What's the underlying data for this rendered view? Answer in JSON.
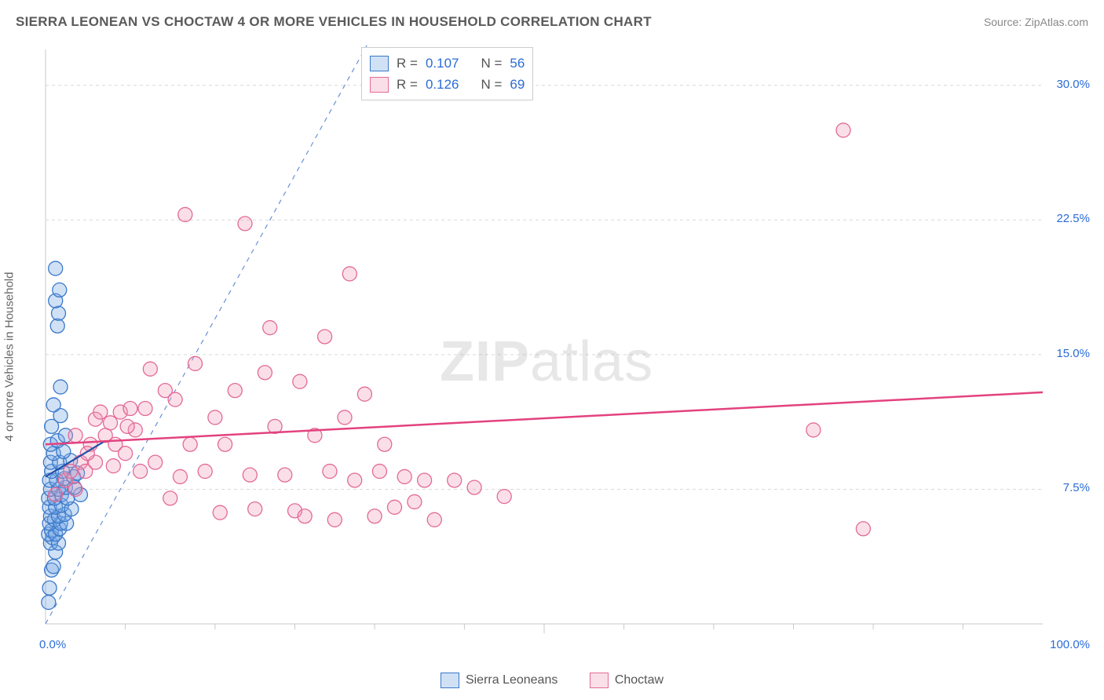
{
  "title": "SIERRA LEONEAN VS CHOCTAW 4 OR MORE VEHICLES IN HOUSEHOLD CORRELATION CHART",
  "source_label": "Source: ",
  "source_name": "ZipAtlas.com",
  "y_axis_label": "4 or more Vehicles in Household",
  "watermark_a": "ZIP",
  "watermark_b": "atlas",
  "chart": {
    "type": "scatter",
    "xlim": [
      0,
      100
    ],
    "ylim": [
      0,
      32
    ],
    "x_tick_labels": {
      "min": "0.0%",
      "max": "100.0%"
    },
    "y_ticks": [
      7.5,
      15.0,
      22.5,
      30.0
    ],
    "y_tick_labels": [
      "7.5%",
      "15.0%",
      "22.5%",
      "30.0%"
    ],
    "x_minor_ticks": [
      8,
      17,
      25,
      33,
      42,
      50,
      58,
      67,
      75,
      83,
      92
    ],
    "grid_color": "#d9d9d9",
    "background_color": "#ffffff",
    "axis_color": "#c8c8c8",
    "tick_label_color": "#2b6cd6",
    "diagonal": {
      "color": "#6a91d8",
      "dash": "6,6",
      "width": 1.2
    },
    "series": [
      {
        "name": "Sierra Leoneans",
        "marker_fill": "rgba(120,170,230,0.35)",
        "marker_stroke": "#3a78c9",
        "trend_color": "#1f4fa8",
        "trend_width": 2.2,
        "marker_r": 9,
        "R": "0.107",
        "N": "56",
        "trend": {
          "x1": 0,
          "y1": 8.2,
          "x2": 6,
          "y2": 10.2
        },
        "points": [
          [
            0.3,
            1.2
          ],
          [
            0.4,
            2.0
          ],
          [
            0.6,
            3.0
          ],
          [
            0.8,
            3.2
          ],
          [
            1.0,
            4.0
          ],
          [
            0.5,
            4.5
          ],
          [
            0.7,
            4.8
          ],
          [
            1.3,
            4.5
          ],
          [
            0.3,
            5.0
          ],
          [
            0.6,
            5.2
          ],
          [
            1.0,
            5.0
          ],
          [
            1.4,
            5.3
          ],
          [
            0.4,
            5.6
          ],
          [
            0.9,
            5.8
          ],
          [
            1.5,
            5.6
          ],
          [
            2.1,
            5.6
          ],
          [
            0.5,
            6.0
          ],
          [
            1.3,
            6.0
          ],
          [
            1.9,
            6.1
          ],
          [
            0.4,
            6.5
          ],
          [
            1.0,
            6.5
          ],
          [
            1.6,
            6.6
          ],
          [
            2.6,
            6.4
          ],
          [
            0.3,
            7.0
          ],
          [
            0.9,
            7.0
          ],
          [
            1.6,
            7.2
          ],
          [
            2.2,
            7.0
          ],
          [
            3.5,
            7.2
          ],
          [
            0.5,
            7.5
          ],
          [
            1.3,
            7.5
          ],
          [
            2.0,
            7.6
          ],
          [
            2.9,
            7.6
          ],
          [
            0.4,
            8.0
          ],
          [
            1.1,
            8.0
          ],
          [
            1.9,
            8.1
          ],
          [
            2.8,
            8.2
          ],
          [
            0.6,
            8.5
          ],
          [
            1.7,
            8.5
          ],
          [
            3.2,
            8.4
          ],
          [
            0.5,
            9.0
          ],
          [
            1.4,
            9.0
          ],
          [
            2.5,
            9.1
          ],
          [
            0.8,
            9.5
          ],
          [
            1.8,
            9.6
          ],
          [
            0.5,
            10.0
          ],
          [
            1.2,
            10.2
          ],
          [
            2.0,
            10.5
          ],
          [
            0.6,
            11.0
          ],
          [
            1.5,
            11.6
          ],
          [
            0.8,
            12.2
          ],
          [
            1.5,
            13.2
          ],
          [
            1.2,
            16.6
          ],
          [
            1.3,
            17.3
          ],
          [
            1.0,
            18.0
          ],
          [
            1.4,
            18.6
          ],
          [
            1.0,
            19.8
          ]
        ]
      },
      {
        "name": "Choctaw",
        "marker_fill": "rgba(242,150,180,0.30)",
        "marker_stroke": "#e36a98",
        "trend_color": "#e3427f",
        "trend_width": 2.5,
        "marker_r": 9,
        "R": "0.126",
        "N": "69",
        "trend": {
          "x1": 0,
          "y1": 10.0,
          "x2": 100,
          "y2": 12.9
        },
        "points": [
          [
            1.0,
            7.2
          ],
          [
            2.0,
            8.0
          ],
          [
            2.5,
            8.5
          ],
          [
            3.0,
            7.5
          ],
          [
            3.5,
            9.0
          ],
          [
            4.0,
            8.5
          ],
          [
            4.5,
            10.0
          ],
          [
            5.0,
            9.0
          ],
          [
            5.0,
            11.4
          ],
          [
            5.5,
            11.8
          ],
          [
            6.0,
            10.5
          ],
          [
            6.5,
            11.2
          ],
          [
            7.0,
            10.0
          ],
          [
            7.5,
            11.8
          ],
          [
            8.0,
            9.5
          ],
          [
            8.5,
            12.0
          ],
          [
            9.0,
            10.8
          ],
          [
            9.5,
            8.5
          ],
          [
            10.0,
            12.0
          ],
          [
            10.5,
            14.2
          ],
          [
            11.0,
            9.0
          ],
          [
            12.0,
            13.0
          ],
          [
            12.5,
            7.0
          ],
          [
            13.0,
            12.5
          ],
          [
            13.5,
            8.2
          ],
          [
            14.0,
            22.8
          ],
          [
            14.5,
            10.0
          ],
          [
            15.0,
            14.5
          ],
          [
            16.0,
            8.5
          ],
          [
            17.0,
            11.5
          ],
          [
            17.5,
            6.2
          ],
          [
            18.0,
            10.0
          ],
          [
            19.0,
            13.0
          ],
          [
            20.0,
            22.3
          ],
          [
            20.5,
            8.3
          ],
          [
            21.0,
            6.4
          ],
          [
            22.0,
            14.0
          ],
          [
            22.5,
            16.5
          ],
          [
            23.0,
            11.0
          ],
          [
            24.0,
            8.3
          ],
          [
            25.0,
            6.3
          ],
          [
            25.5,
            13.5
          ],
          [
            26.0,
            6.0
          ],
          [
            27.0,
            10.5
          ],
          [
            28.0,
            16.0
          ],
          [
            28.5,
            8.5
          ],
          [
            29.0,
            5.8
          ],
          [
            30.0,
            11.5
          ],
          [
            30.5,
            19.5
          ],
          [
            31.0,
            8.0
          ],
          [
            32.0,
            12.8
          ],
          [
            33.0,
            6.0
          ],
          [
            33.5,
            8.5
          ],
          [
            34.0,
            10.0
          ],
          [
            35.0,
            6.5
          ],
          [
            36.0,
            8.2
          ],
          [
            37.0,
            6.8
          ],
          [
            38.0,
            8.0
          ],
          [
            39.0,
            5.8
          ],
          [
            41.0,
            8.0
          ],
          [
            43.0,
            7.6
          ],
          [
            46.0,
            7.1
          ],
          [
            77.0,
            10.8
          ],
          [
            80.0,
            27.5
          ],
          [
            82.0,
            5.3
          ],
          [
            3.0,
            10.5
          ],
          [
            4.2,
            9.5
          ],
          [
            6.8,
            8.8
          ],
          [
            8.2,
            11.0
          ]
        ]
      }
    ],
    "legend_labels": {
      "a": "Sierra Leoneans",
      "b": "Choctaw"
    },
    "corr_labels": {
      "R": "R =",
      "N": "N ="
    }
  }
}
